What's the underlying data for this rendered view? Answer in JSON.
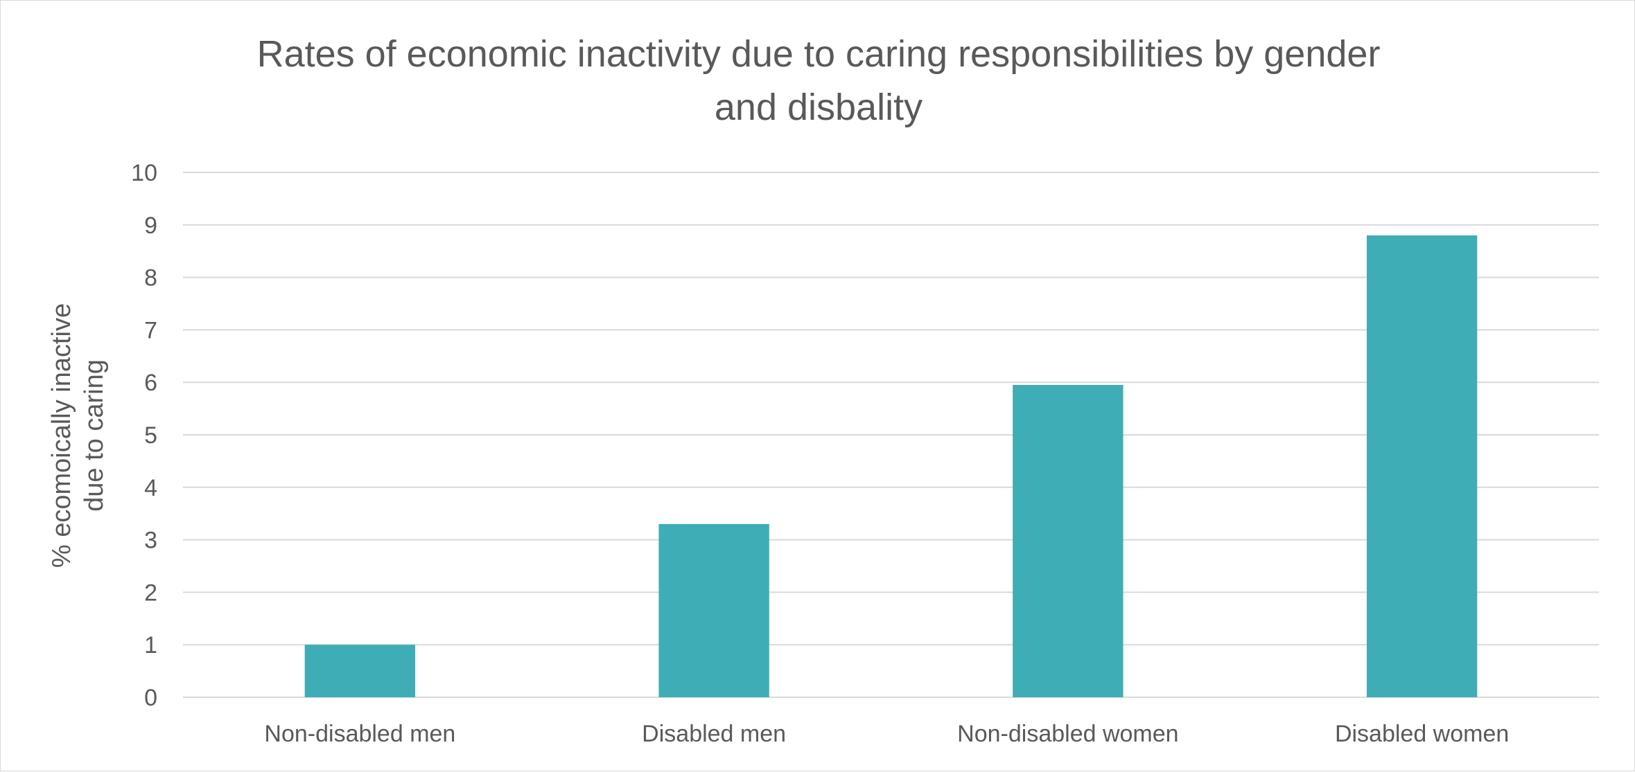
{
  "chart_data": {
    "type": "bar",
    "title": "Rates of economic inactivity due to caring responsibilities by gender and disbality",
    "title_lines": [
      "Rates of economic inactivity due to caring responsibilities by gender",
      "and disbality"
    ],
    "ylabel": "% ecomoically inactive due to caring",
    "ylabel_lines": [
      "% ecomoically inactive",
      "due to caring"
    ],
    "xlabel": "",
    "categories": [
      "Non-disabled men",
      "Disabled men",
      "Non-disabled women",
      "Disabled women"
    ],
    "values": [
      1.0,
      3.3,
      5.95,
      8.8
    ],
    "ylim": [
      0,
      10
    ],
    "yticks": [
      0,
      1,
      2,
      3,
      4,
      5,
      6,
      7,
      8,
      9,
      10
    ],
    "grid": "horizontal",
    "legend": "none",
    "bar_color": "#3EADB6",
    "grid_color": "#D9D9D9",
    "text_color": "#595959"
  }
}
